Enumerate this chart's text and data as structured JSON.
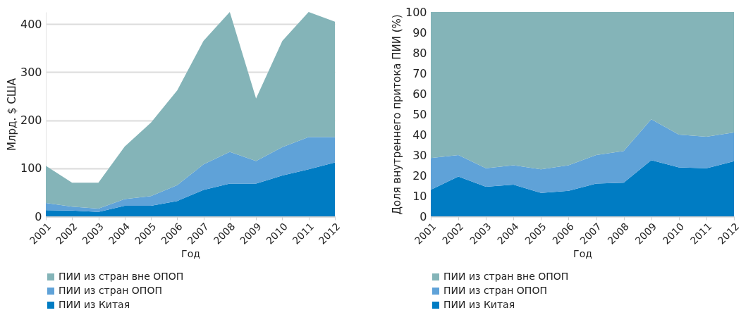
{
  "chart_data": [
    {
      "type": "area",
      "stacked": true,
      "categories": [
        "2001",
        "2002",
        "2003",
        "2004",
        "2005",
        "2006",
        "2007",
        "2008",
        "2009",
        "2010",
        "2011",
        "2012"
      ],
      "series": [
        {
          "name": "ПИИ из Китая",
          "color": "#007cc3",
          "values": [
            13,
            12,
            9,
            22,
            22,
            32,
            55,
            68,
            68,
            85,
            98,
            112
          ]
        },
        {
          "name": "ПИИ из стран ОПОП",
          "color": "#5fa2d8",
          "values": [
            15,
            8,
            7,
            14,
            20,
            33,
            53,
            66,
            47,
            59,
            67,
            53
          ]
        },
        {
          "name": "ПИИ из стран вне ОПОП",
          "color": "#84b4b8",
          "values": [
            77,
            50,
            54,
            109,
            153,
            197,
            257,
            291,
            130,
            221,
            260,
            240
          ]
        }
      ],
      "ylim": [
        0,
        425
      ],
      "yticks": [
        0,
        100,
        200,
        300,
        400
      ],
      "xlabel": "Год",
      "ylabel": "Млрд. $ США",
      "grid": "y",
      "legend": "bottom"
    },
    {
      "type": "area",
      "stacked": true,
      "categories": [
        "2001",
        "2002",
        "2003",
        "2004",
        "2005",
        "2006",
        "2007",
        "2008",
        "2009",
        "2010",
        "2011",
        "2012"
      ],
      "series": [
        {
          "name": "ПИИ из Китая",
          "color": "#007cc3",
          "values": [
            13,
            19.5,
            14.5,
            15.5,
            11.5,
            12.5,
            16,
            16.5,
            27.5,
            24,
            23.5,
            27
          ]
        },
        {
          "name": "ПИИ из стран ОПОП",
          "color": "#5fa2d8",
          "values": [
            15.5,
            10.5,
            9,
            9.5,
            11.5,
            12.5,
            14,
            15.5,
            20,
            16,
            15.5,
            14
          ]
        },
        {
          "name": "ПИИ из стран вне ОПОП",
          "color": "#84b4b8",
          "values": [
            71.5,
            70,
            76.5,
            75,
            77,
            75,
            70,
            68,
            52.5,
            60,
            61,
            59
          ]
        }
      ],
      "ylim": [
        0,
        100
      ],
      "yticks": [
        0,
        10,
        20,
        30,
        40,
        50,
        60,
        70,
        80,
        90,
        100
      ],
      "xlabel": "Год",
      "ylabel": "Доля внутреннего притока ПИИ (%)",
      "grid": false,
      "legend": "bottom"
    }
  ]
}
